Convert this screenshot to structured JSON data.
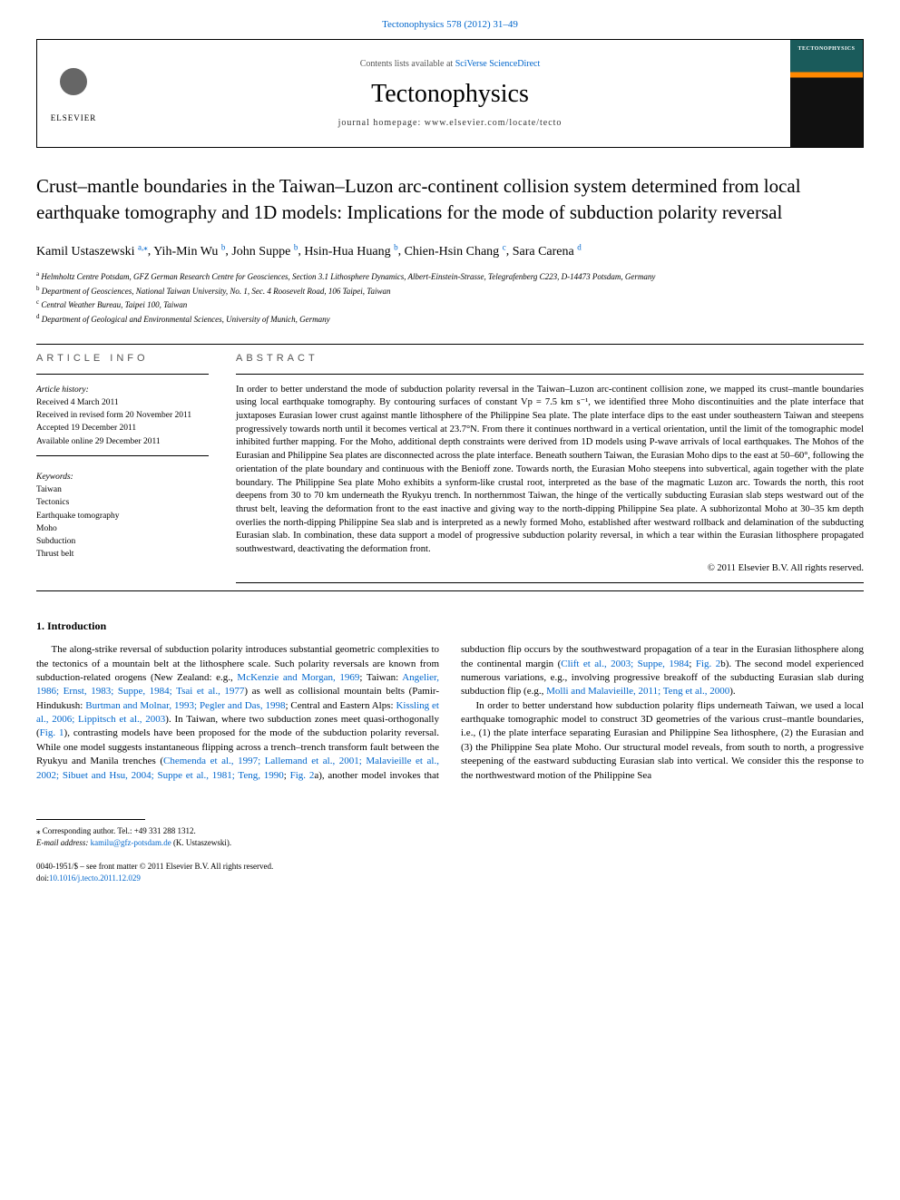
{
  "journal_ref": "Tectonophysics 578 (2012) 31–49",
  "header": {
    "contents_prefix": "Contents lists available at ",
    "contents_link": "SciVerse ScienceDirect",
    "journal_name": "Tectonophysics",
    "homepage": "journal homepage: www.elsevier.com/locate/tecto",
    "publisher": "ELSEVIER",
    "cover_label": "TECTONOPHYSICS"
  },
  "title": "Crust–mantle boundaries in the Taiwan–Luzon arc-continent collision system determined from local earthquake tomography and 1D models: Implications for the mode of subduction polarity reversal",
  "authors": [
    {
      "name": "Kamil Ustaszewski",
      "aff": "a",
      "corr": true
    },
    {
      "name": "Yih-Min Wu",
      "aff": "b"
    },
    {
      "name": "John Suppe",
      "aff": "b"
    },
    {
      "name": "Hsin-Hua Huang",
      "aff": "b"
    },
    {
      "name": "Chien-Hsin Chang",
      "aff": "c"
    },
    {
      "name": "Sara Carena",
      "aff": "d"
    }
  ],
  "affiliations": {
    "a": "Helmholtz Centre Potsdam, GFZ German Research Centre for Geosciences, Section 3.1 Lithosphere Dynamics, Albert-Einstein-Strasse, Telegrafenberg C223, D-14473 Potsdam, Germany",
    "b": "Department of Geosciences, National Taiwan University, No. 1, Sec. 4 Roosevelt Road, 106 Taipei, Taiwan",
    "c": "Central Weather Bureau, Taipei 100, Taiwan",
    "d": "Department of Geological and Environmental Sciences, University of Munich, Germany"
  },
  "article_info": {
    "heading": "ARTICLE INFO",
    "history_label": "Article history:",
    "received": "Received 4 March 2011",
    "revised": "Received in revised form 20 November 2011",
    "accepted": "Accepted 19 December 2011",
    "online": "Available online 29 December 2011",
    "keywords_label": "Keywords:",
    "keywords": [
      "Taiwan",
      "Tectonics",
      "Earthquake tomography",
      "Moho",
      "Subduction",
      "Thrust belt"
    ]
  },
  "abstract": {
    "heading": "ABSTRACT",
    "text": "In order to better understand the mode of subduction polarity reversal in the Taiwan–Luzon arc-continent collision zone, we mapped its crust–mantle boundaries using local earthquake tomography. By contouring surfaces of constant Vp = 7.5 km s⁻¹, we identified three Moho discontinuities and the plate interface that juxtaposes Eurasian lower crust against mantle lithosphere of the Philippine Sea plate. The plate interface dips to the east under southeastern Taiwan and steepens progressively towards north until it becomes vertical at 23.7°N. From there it continues northward in a vertical orientation, until the limit of the tomographic model inhibited further mapping. For the Moho, additional depth constraints were derived from 1D models using P-wave arrivals of local earthquakes. The Mohos of the Eurasian and Philippine Sea plates are disconnected across the plate interface. Beneath southern Taiwan, the Eurasian Moho dips to the east at 50–60°, following the orientation of the plate boundary and continuous with the Benioff zone. Towards north, the Eurasian Moho steepens into subvertical, again together with the plate boundary. The Philippine Sea plate Moho exhibits a synform-like crustal root, interpreted as the base of the magmatic Luzon arc. Towards the north, this root deepens from 30 to 70 km underneath the Ryukyu trench. In northernmost Taiwan, the hinge of the vertically subducting Eurasian slab steps westward out of the thrust belt, leaving the deformation front to the east inactive and giving way to the north-dipping Philippine Sea plate. A subhorizontal Moho at 30–35 km depth overlies the north-dipping Philippine Sea slab and is interpreted as a newly formed Moho, established after westward rollback and delamination of the subducting Eurasian slab. In combination, these data support a model of progressive subduction polarity reversal, in which a tear within the Eurasian lithosphere propagated southwestward, deactivating the deformation front.",
    "copyright": "© 2011 Elsevier B.V. All rights reserved."
  },
  "body": {
    "heading": "1. Introduction",
    "p1a": "The along-strike reversal of subduction polarity introduces substantial geometric complexities to the tectonics of a mountain belt at the lithosphere scale. Such polarity reversals are known from subduction-related orogens (New Zealand: e.g., ",
    "p1_link1": "McKenzie and Morgan, 1969",
    "p1b": "; Taiwan: ",
    "p1_link2": "Angelier, 1986; Ernst, 1983; Suppe, 1984; Tsai et al., 1977",
    "p1c": ") as well as collisional mountain belts (Pamir-Hindukush: ",
    "p1_link3": "Burtman and Molnar, 1993; Pegler and Das, 1998",
    "p1d": "; Central and Eastern Alps: ",
    "p1_link4": "Kissling et al., 2006; Lippitsch et al., 2003",
    "p1e": "). In Taiwan, where two subduction zones meet quasi-orthogonally (",
    "p1_link5": "Fig. 1",
    "p1f": "), contrasting models have been proposed for the mode of the subduction polarity reversal. While one model suggests instantaneous flipping across a ",
    "p2a": "trench–trench transform fault between the Ryukyu and Manila trenches (",
    "p2_link1": "Chemenda et al., 1997; Lallemand et al., 2001; Malavieille et al., 2002; Sibuet and Hsu, 2004; Suppe et al., 1981; Teng, 1990",
    "p2b": "; ",
    "p2_link2": "Fig. 2",
    "p2c": "a), another model invokes that subduction flip occurs by the southwestward propagation of a tear in the Eurasian lithosphere along the continental margin (",
    "p2_link3": "Clift et al., 2003; Suppe, 1984",
    "p2d": "; ",
    "p2_link4": "Fig. 2",
    "p2e": "b). The second model experienced numerous variations, e.g., involving progressive breakoff of the subducting Eurasian slab during subduction flip (e.g., ",
    "p2_link5": "Molli and Malavieille, 2011; Teng et al., 2000",
    "p2f": ").",
    "p3": "In order to better understand how subduction polarity flips underneath Taiwan, we used a local earthquake tomographic model to construct 3D geometries of the various crust–mantle boundaries, i.e., (1) the plate interface separating Eurasian and Philippine Sea lithosphere, (2) the Eurasian and (3) the Philippine Sea plate Moho. Our structural model reveals, from south to north, a progressive steepening of the eastward subducting Eurasian slab into vertical. We consider this the response to the northwestward motion of the Philippine Sea"
  },
  "footnote": {
    "corr": "⁎ Corresponding author. Tel.: +49 331 288 1312.",
    "email_label": "E-mail address: ",
    "email": "kamilu@gfz-potsdam.de",
    "email_suffix": " (K. Ustaszewski)."
  },
  "footer": {
    "line1": "0040-1951/$ – see front matter © 2011 Elsevier B.V. All rights reserved.",
    "doi": "doi:10.1016/j.tecto.2011.12.029"
  },
  "colors": {
    "link": "#0066cc",
    "text": "#000000",
    "muted": "#555555"
  }
}
